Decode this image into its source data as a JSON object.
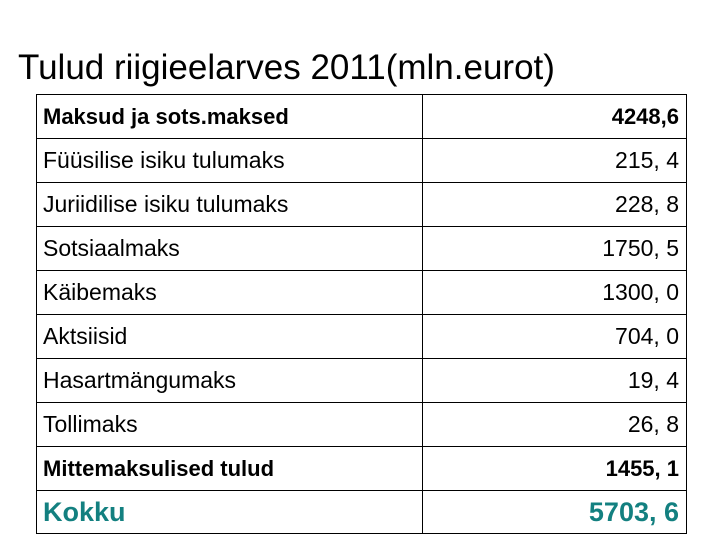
{
  "title": "Tulud riigieelarves 2011(mln.eurot)",
  "accent_color": "#138080",
  "rows": [
    {
      "label": "Maksud ja sots.maksed",
      "value": "4248,6",
      "bold": true
    },
    {
      "label": "Füüsilise isiku tulumaks",
      "value": "215, 4"
    },
    {
      "label": "Juriidilise isiku tulumaks",
      "value": "228, 8"
    },
    {
      "label": "Sotsiaalmaks",
      "value": "1750, 5"
    },
    {
      "label": "Käibemaks",
      "value": "1300, 0"
    },
    {
      "label": "Aktsiisid",
      "value": "704, 0"
    },
    {
      "label": "Hasartmängumaks",
      "value": "19, 4"
    },
    {
      "label": "Tollimaks",
      "value": "26, 8"
    },
    {
      "label": "Mittemaksulised tulud",
      "value": "1455, 1",
      "bold": true
    }
  ],
  "total": {
    "label": "Kokku",
    "value": "5703, 6"
  }
}
